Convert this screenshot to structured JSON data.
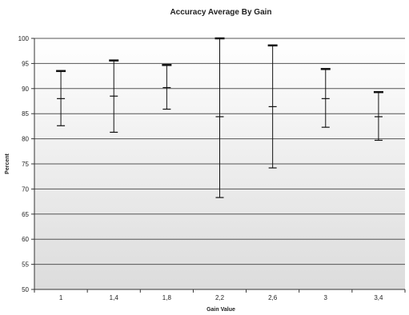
{
  "chart_data": {
    "type": "errorbar",
    "title": "Accuracy Average By Gain",
    "xlabel": "Gain Value",
    "ylabel": "Percent",
    "categories": [
      "1",
      "1,4",
      "1,8",
      "2,2",
      "2,6",
      "3",
      "3,4"
    ],
    "mean": [
      88.0,
      88.5,
      90.2,
      84.4,
      86.4,
      88.0,
      84.4
    ],
    "upper": [
      93.5,
      95.6,
      94.7,
      100.0,
      98.6,
      93.9,
      89.3
    ],
    "lower": [
      82.6,
      81.3,
      85.9,
      68.3,
      74.2,
      82.3,
      79.7
    ],
    "ylim": [
      50,
      100
    ],
    "yticks": [
      50,
      55,
      60,
      65,
      70,
      75,
      80,
      85,
      90,
      95,
      100
    ],
    "grid": true,
    "legend": "none",
    "colors": {
      "line": "#111111",
      "grid": "#555555",
      "plot_top": "#ffffff",
      "plot_bottom": "#dcdcdc"
    }
  }
}
